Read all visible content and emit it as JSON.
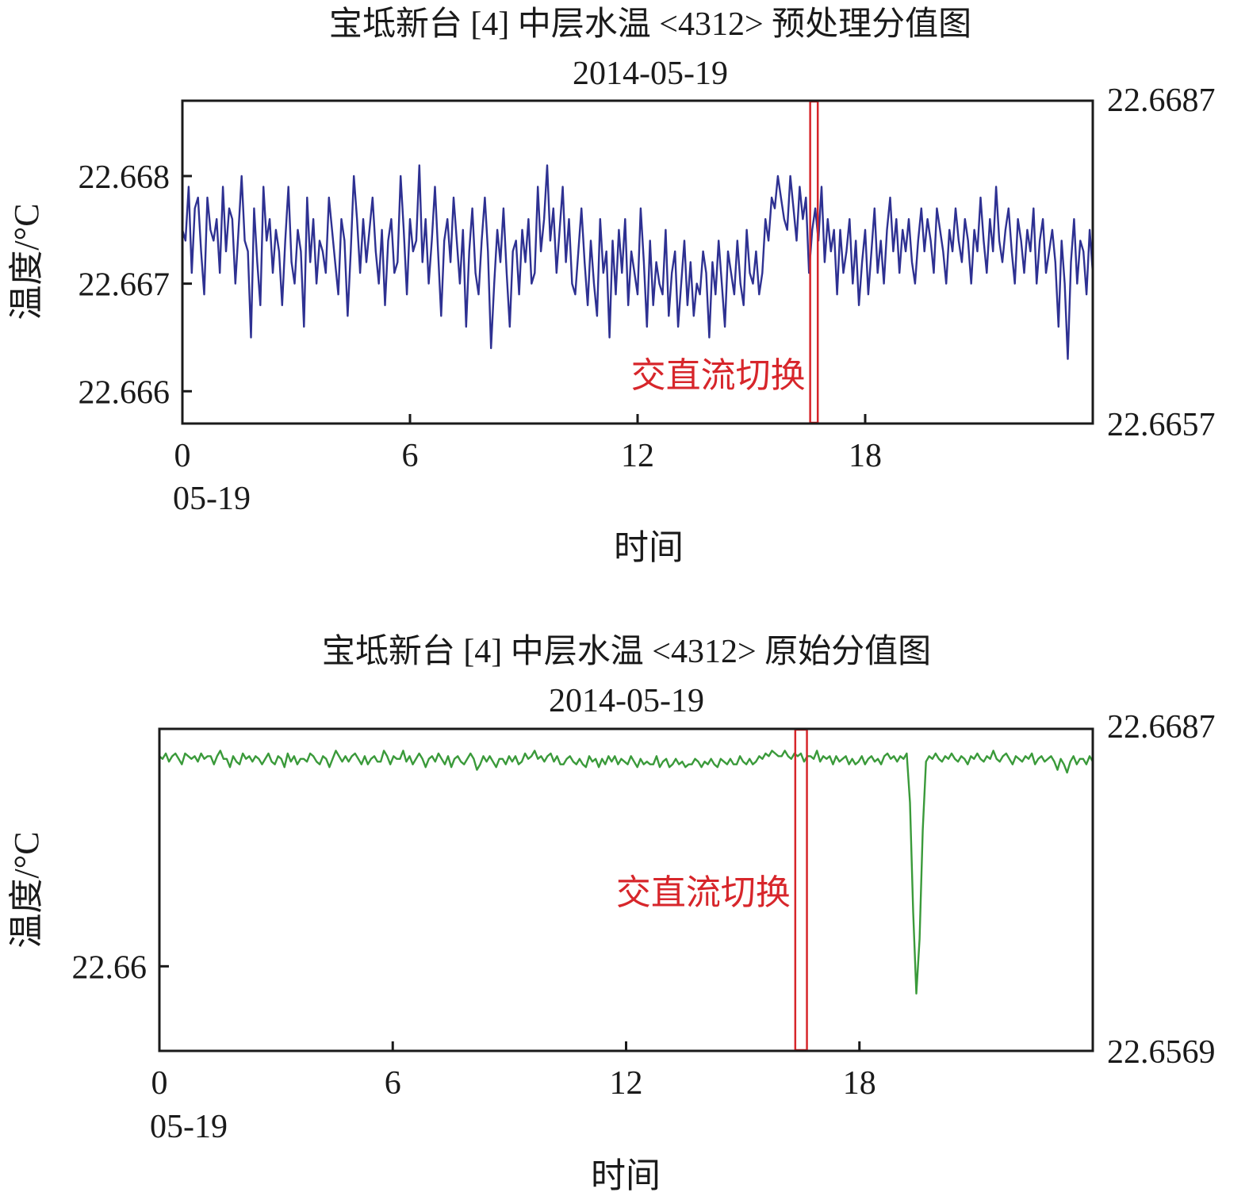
{
  "chart_data": [
    {
      "type": "line",
      "title": "宝坻新台 [4] 中层水温 <4312> 预处理分值图",
      "subtitle": "2014-05-19",
      "xlabel": "时间",
      "ylabel": "温度/°C",
      "xlim": [
        0,
        24
      ],
      "ylim": [
        22.6657,
        22.6687
      ],
      "x_ticks": [
        {
          "value": 0,
          "label": "0"
        },
        {
          "value": 6,
          "label": "6"
        },
        {
          "value": 12,
          "label": "12"
        },
        {
          "value": 18,
          "label": "18"
        }
      ],
      "x_date_label": "05-19",
      "y_ticks": [
        {
          "value": 22.666,
          "label": "22.666"
        },
        {
          "value": 22.667,
          "label": "22.667"
        },
        {
          "value": 22.668,
          "label": "22.668"
        }
      ],
      "y_range_labels": {
        "top": "22.6687",
        "bottom": "22.6657"
      },
      "grid": false,
      "line_color": "#2e3192",
      "annotation": {
        "text": "交直流切换",
        "x_start": 16.55,
        "x_end": 16.75,
        "color": "#d7262b"
      },
      "series": [
        {
          "values": [
            22.6675,
            22.6674,
            22.6679,
            22.6671,
            22.6677,
            22.6678,
            22.6673,
            22.6669,
            22.6678,
            22.6675,
            22.6674,
            22.6676,
            22.6671,
            22.6679,
            22.6673,
            22.6677,
            22.6676,
            22.667,
            22.6675,
            22.668,
            22.6674,
            22.6673,
            22.6665,
            22.6677,
            22.6672,
            22.6668,
            22.6679,
            22.6674,
            22.6676,
            22.6671,
            22.6675,
            22.6673,
            22.6668,
            22.6674,
            22.6679,
            22.6672,
            22.667,
            22.6675,
            22.6673,
            22.6666,
            22.6678,
            22.6672,
            22.6676,
            22.667,
            22.6674,
            22.6673,
            22.6671,
            22.6678,
            22.6675,
            22.6672,
            22.6669,
            22.6676,
            22.6674,
            22.6667,
            22.6673,
            22.668,
            22.6676,
            22.6671,
            22.6676,
            22.6672,
            22.6675,
            22.6678,
            22.6673,
            22.667,
            22.6675,
            22.6668,
            22.6674,
            22.6676,
            22.6671,
            22.6672,
            22.668,
            22.6675,
            22.6669,
            22.6676,
            22.6673,
            22.6674,
            22.6681,
            22.6672,
            22.6676,
            22.667,
            22.6674,
            22.6679,
            22.6673,
            22.6667,
            22.6674,
            22.6676,
            22.6672,
            22.6678,
            22.6674,
            22.667,
            22.6675,
            22.6666,
            22.6673,
            22.6677,
            22.6671,
            22.6669,
            22.6674,
            22.6678,
            22.6673,
            22.6664,
            22.667,
            22.6675,
            22.6672,
            22.6677,
            22.6671,
            22.6666,
            22.6673,
            22.6674,
            22.6669,
            22.6675,
            22.6672,
            22.6676,
            22.667,
            22.6671,
            22.6679,
            22.6673,
            22.6676,
            22.6681,
            22.6674,
            22.6677,
            22.6671,
            22.6675,
            22.6679,
            22.6672,
            22.6676,
            22.667,
            22.6669,
            22.6673,
            22.6677,
            22.6672,
            22.6668,
            22.6674,
            22.667,
            22.6667,
            22.6676,
            22.6671,
            22.6673,
            22.6665,
            22.6674,
            22.6669,
            22.6675,
            22.6671,
            22.6676,
            22.6668,
            22.6673,
            22.6671,
            22.6669,
            22.6677,
            22.6672,
            22.6666,
            22.6674,
            22.6668,
            22.6672,
            22.667,
            22.6669,
            22.6675,
            22.6667,
            22.6671,
            22.6673,
            22.6666,
            22.667,
            22.6674,
            22.6668,
            22.6672,
            22.6667,
            22.667,
            22.6669,
            22.6673,
            22.6671,
            22.6665,
            22.6672,
            22.6669,
            22.6674,
            22.667,
            22.6666,
            22.6673,
            22.6671,
            22.6669,
            22.6674,
            22.667,
            22.6668,
            22.6675,
            22.6671,
            22.667,
            22.6673,
            22.6669,
            22.6671,
            22.6676,
            22.6674,
            22.6678,
            22.6677,
            22.668,
            22.6678,
            22.6676,
            22.6675,
            22.668,
            22.6677,
            22.6674,
            22.6679,
            22.6676,
            22.6678,
            22.6671,
            22.6675,
            22.6677,
            22.6674,
            22.6679,
            22.6672,
            22.6676,
            22.6673,
            22.6675,
            22.6669,
            22.6675,
            22.6671,
            22.6673,
            22.6676,
            22.667,
            22.6674,
            22.6668,
            22.6672,
            22.6675,
            22.6669,
            22.6673,
            22.6677,
            22.6671,
            22.6674,
            22.667,
            22.6675,
            22.6678,
            22.6673,
            22.6676,
            22.6671,
            22.6675,
            22.6673,
            22.6676,
            22.6672,
            22.667,
            22.6674,
            22.6677,
            22.6673,
            22.6676,
            22.6674,
            22.6671,
            22.6677,
            22.6675,
            22.6673,
            22.667,
            22.6675,
            22.6673,
            22.6677,
            22.6674,
            22.6672,
            22.6676,
            22.6674,
            22.667,
            22.6675,
            22.6673,
            22.6678,
            22.6674,
            22.6671,
            22.6676,
            22.6673,
            22.6679,
            22.6674,
            22.6672,
            22.6675,
            22.6677,
            22.6673,
            22.667,
            22.6676,
            22.6674,
            22.6671,
            22.6675,
            22.6673,
            22.6677,
            22.667,
            22.6674,
            22.6676,
            22.6671,
            22.6673,
            22.6675,
            22.6672,
            22.6666,
            22.6674,
            22.667,
            22.6663,
            22.6672,
            22.6676,
            22.667,
            22.6674,
            22.6673,
            22.6669,
            22.6675,
            22.6671
          ]
        }
      ]
    },
    {
      "type": "line",
      "title": "宝坻新台 [4] 中层水温 <4312> 原始分值图",
      "subtitle": "2014-05-19",
      "xlabel": "时间",
      "ylabel": "温度/°C",
      "xlim": [
        0,
        24
      ],
      "ylim": [
        22.6569,
        22.6687
      ],
      "x_ticks": [
        {
          "value": 0,
          "label": "0"
        },
        {
          "value": 6,
          "label": "6"
        },
        {
          "value": 12,
          "label": "12"
        },
        {
          "value": 18,
          "label": "18"
        }
      ],
      "x_date_label": "05-19",
      "y_ticks": [
        {
          "value": 22.66,
          "label": "22.66"
        }
      ],
      "y_range_labels": {
        "top": "22.6687",
        "bottom": "22.6569"
      },
      "grid": false,
      "line_color": "#3a9a3a",
      "annotation": {
        "text": "交直流切换",
        "x_start": 16.35,
        "x_end": 16.65,
        "color": "#d7262b"
      },
      "series": [
        {
          "values": [
            22.6677,
            22.6676,
            22.6678,
            22.6675,
            22.6677,
            22.6678,
            22.6676,
            22.6674,
            22.6678,
            22.6677,
            22.6676,
            22.6677,
            22.6675,
            22.6678,
            22.6676,
            22.6677,
            22.6677,
            22.6674,
            22.6677,
            22.6679,
            22.6676,
            22.6676,
            22.6673,
            22.6677,
            22.6675,
            22.6674,
            22.6678,
            22.6676,
            22.6677,
            22.6675,
            22.6677,
            22.6676,
            22.6674,
            22.6676,
            22.6678,
            22.6675,
            22.6674,
            22.6677,
            22.6676,
            22.6673,
            22.6678,
            22.6675,
            22.6677,
            22.6674,
            22.6676,
            22.6676,
            22.6675,
            22.6678,
            22.6677,
            22.6675,
            22.6674,
            22.6677,
            22.6676,
            22.6673,
            22.6676,
            22.6679,
            22.6677,
            22.6675,
            22.6677,
            22.6675,
            22.6677,
            22.6678,
            22.6676,
            22.6674,
            22.6677,
            22.6674,
            22.6676,
            22.6677,
            22.6675,
            22.6675,
            22.6679,
            22.6677,
            22.6674,
            22.6677,
            22.6676,
            22.6676,
            22.6679,
            22.6675,
            22.6677,
            22.6674,
            22.6676,
            22.6678,
            22.6676,
            22.6673,
            22.6676,
            22.6677,
            22.6675,
            22.6678,
            22.6676,
            22.6674,
            22.6677,
            22.6673,
            22.6676,
            22.6677,
            22.6675,
            22.6674,
            22.6676,
            22.6678,
            22.6676,
            22.6672,
            22.6674,
            22.6677,
            22.6675,
            22.6677,
            22.6675,
            22.6673,
            22.6676,
            22.6676,
            22.6674,
            22.6677,
            22.6675,
            22.6677,
            22.6674,
            22.6675,
            22.6678,
            22.6676,
            22.6677,
            22.6679,
            22.6676,
            22.6677,
            22.6675,
            22.6677,
            22.6678,
            22.6675,
            22.6677,
            22.6674,
            22.6674,
            22.6676,
            22.6677,
            22.6675,
            22.6674,
            22.6676,
            22.6674,
            22.6673,
            22.6677,
            22.6675,
            22.6676,
            22.6673,
            22.6676,
            22.6674,
            22.6677,
            22.6675,
            22.6677,
            22.6674,
            22.6676,
            22.6675,
            22.6674,
            22.6677,
            22.6675,
            22.6673,
            22.6676,
            22.6674,
            22.6675,
            22.6674,
            22.6674,
            22.6677,
            22.6673,
            22.6675,
            22.6676,
            22.6673,
            22.6674,
            22.6676,
            22.6674,
            22.6675,
            22.6673,
            22.6674,
            22.6674,
            22.6676,
            22.6675,
            22.6673,
            22.6675,
            22.6674,
            22.6676,
            22.6674,
            22.6673,
            22.6676,
            22.6675,
            22.6674,
            22.6676,
            22.6674,
            22.6674,
            22.6677,
            22.6675,
            22.6674,
            22.6676,
            22.6674,
            22.6675,
            22.6677,
            22.6676,
            22.6678,
            22.6677,
            22.6679,
            22.6678,
            22.6677,
            22.6677,
            22.6679,
            22.6677,
            22.6676,
            22.6678,
            22.6677,
            22.6678,
            22.6675,
            22.6677,
            22.6677,
            22.6676,
            22.6679,
            22.6675,
            22.6677,
            22.6676,
            22.6677,
            22.6674,
            22.6677,
            22.6675,
            22.6676,
            22.6677,
            22.6674,
            22.6676,
            22.6674,
            22.6675,
            22.6677,
            22.6674,
            22.6676,
            22.6677,
            22.6675,
            22.6676,
            22.6674,
            22.6677,
            22.6678,
            22.6676,
            22.6677,
            22.6675,
            22.6677,
            22.6676,
            22.6678,
            22.666,
            22.662,
            22.659,
            22.661,
            22.665,
            22.6675,
            22.6677,
            22.6676,
            22.6678,
            22.6676,
            22.6675,
            22.6677,
            22.6676,
            22.6678,
            22.6676,
            22.6675,
            22.6677,
            22.6676,
            22.6674,
            22.6677,
            22.6676,
            22.6678,
            22.6676,
            22.6675,
            22.6677,
            22.6676,
            22.6679,
            22.6676,
            22.6675,
            22.6677,
            22.6678,
            22.6676,
            22.6674,
            22.6677,
            22.6676,
            22.6675,
            22.6677,
            22.6676,
            22.6678,
            22.6674,
            22.6676,
            22.6677,
            22.6675,
            22.6676,
            22.6677,
            22.6675,
            22.6672,
            22.6676,
            22.6674,
            22.6671,
            22.6675,
            22.6677,
            22.6674,
            22.6676,
            22.6676,
            22.6674,
            22.6677,
            22.6675
          ]
        }
      ]
    }
  ]
}
